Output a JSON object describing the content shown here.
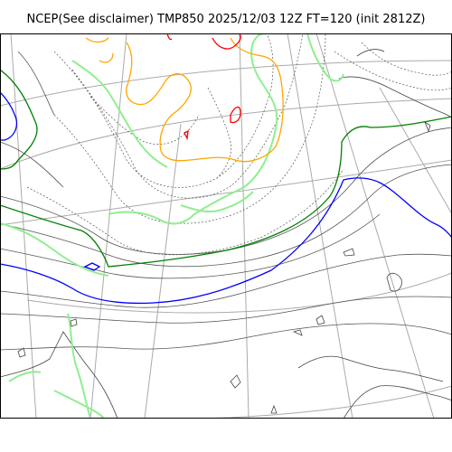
{
  "title": "NCEP(See disclaimer) TMP850 2025/12/03 12Z FT=120 (init 2812Z)",
  "colors": {
    "background": "#ffffff",
    "frame": "#000000",
    "graticule": "#aaaaaa",
    "coastline": "#444444",
    "isotherm_thin": "#555555",
    "isotherm_dotted": "#555555",
    "isotherm_0C": "#0000ff",
    "isotherm_minus6C": "#008000",
    "isotherm_minus12C": "#90ee90",
    "isotherm_minus24C": "#ffa500",
    "isotherm_minus30C": "#ff0000"
  }
}
